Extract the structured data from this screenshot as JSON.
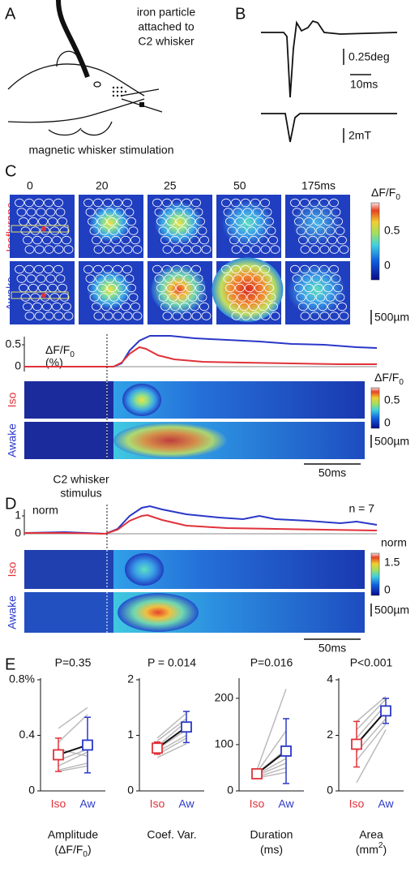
{
  "panel_a": {
    "letter": "A",
    "annotation": [
      "iron particle",
      "attached to",
      "C2 whisker"
    ],
    "caption": "magnetic whisker stimulation"
  },
  "panel_b": {
    "letter": "B",
    "scale_deflection": "0.25deg",
    "scale_time": "10ms",
    "scale_field": "2mT"
  },
  "panel_c": {
    "letter": "C",
    "frame_times": [
      "0",
      "20",
      "25",
      "50",
      "175ms"
    ],
    "colorbar_title": "ΔF/F",
    "colorbar_subscript": "0",
    "colorbar_ticks": [
      "0.5",
      "0"
    ],
    "rows": [
      "Isoflurane",
      "Awake"
    ],
    "scale_bar": "500µm",
    "trace": {
      "yticks": [
        "0.5",
        "0"
      ],
      "ylabel": "ΔF/F",
      "ylabel_subscript": "0",
      "ylabel_unit": "(%)"
    },
    "heatmap": {
      "colorbar_title": "ΔF/F",
      "colorbar_subscript": "0",
      "colorbar_ticks": [
        "0.5",
        "0"
      ],
      "rows": [
        "Iso",
        "Awake"
      ],
      "scale_bar": "500µm",
      "time_bar": "50ms"
    },
    "stimulus_label": [
      "C2 whisker",
      "stimulus"
    ]
  },
  "panel_d": {
    "letter": "D",
    "trace": {
      "yticks": [
        "1",
        "0"
      ],
      "ylabel": "norm",
      "n_label": "n = 7"
    },
    "heatmap": {
      "colorbar_title": "norm",
      "colorbar_ticks": [
        "1.5",
        "0"
      ],
      "rows": [
        "Iso",
        "Awake"
      ],
      "scale_bar": "500µm",
      "time_bar": "50ms"
    }
  },
  "panel_e": {
    "letter": "E",
    "categories": [
      "Iso",
      "Aw"
    ],
    "colors": [
      "#e0323a",
      "#2a38c8"
    ],
    "charts": [
      {
        "title": "P=0.35",
        "ylim": [
          0,
          0.8
        ],
        "yticks": [
          0,
          0.4,
          {
            "value": 0.8,
            "label": "0.8%"
          }
        ],
        "means": [
          0.26,
          0.33
        ],
        "errors": [
          0.12,
          0.2
        ],
        "subjects": [
          [
            0.45,
            0.6
          ],
          [
            0.35,
            0.55
          ],
          [
            0.3,
            0.25
          ],
          [
            0.22,
            0.3
          ],
          [
            0.18,
            0.28
          ],
          [
            0.15,
            0.2
          ],
          [
            0.14,
            0.18
          ]
        ],
        "xlabel": "Amplitude",
        "unit_parts": [
          "(ΔF/F",
          "0",
          ")"
        ],
        "unit_script": "sub"
      },
      {
        "title": "P = 0.014",
        "ylim": [
          0,
          2
        ],
        "yticks": [
          0,
          1,
          2
        ],
        "means": [
          0.77,
          1.15
        ],
        "errors": [
          0.11,
          0.28
        ],
        "subjects": [
          [
            0.95,
            1.4
          ],
          [
            0.9,
            1.3
          ],
          [
            0.8,
            1.25
          ],
          [
            0.75,
            1.1
          ],
          [
            0.7,
            1.0
          ],
          [
            0.65,
            0.95
          ],
          [
            0.6,
            0.85
          ]
        ],
        "xlabel": "Coef. Var."
      },
      {
        "title": "P=0.016",
        "ylim": [
          0,
          240
        ],
        "yticks": [
          0,
          100,
          200
        ],
        "means": [
          37,
          86
        ],
        "errors": [
          8,
          70
        ],
        "subjects": [
          [
            45,
            220
          ],
          [
            40,
            130
          ],
          [
            38,
            90
          ],
          [
            35,
            70
          ],
          [
            33,
            60
          ],
          [
            30,
            50
          ],
          [
            28,
            40
          ]
        ],
        "xlabel": "Duration",
        "unit_parts": [
          "(ms)"
        ]
      },
      {
        "title": "P<0.001",
        "ylim": [
          0,
          4
        ],
        "yticks": [
          0,
          2,
          4
        ],
        "means": [
          1.68,
          2.88
        ],
        "errors": [
          0.82,
          0.45
        ],
        "subjects": [
          [
            2.5,
            3.4
          ],
          [
            2.2,
            3.3
          ],
          [
            1.9,
            3.1
          ],
          [
            1.7,
            2.9
          ],
          [
            1.4,
            2.6
          ],
          [
            1.1,
            2.4
          ],
          [
            0.3,
            2.2
          ]
        ],
        "xlabel": "Area",
        "unit_parts": [
          "(mm",
          "2",
          ")"
        ],
        "unit_script": "super"
      }
    ]
  }
}
